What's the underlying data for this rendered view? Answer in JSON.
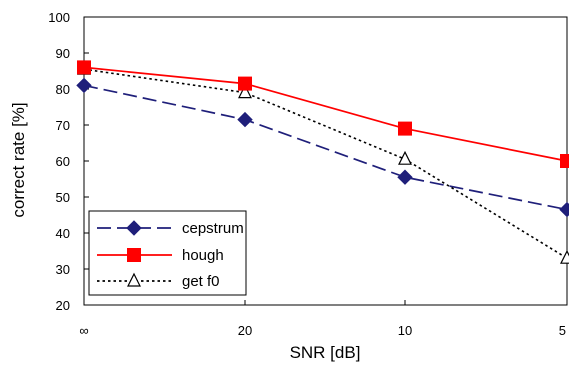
{
  "chart_data": {
    "type": "line",
    "categories": [
      "∞",
      "20",
      "10",
      "5"
    ],
    "xlabel": "SNR [dB]",
    "ylabel": "correct rate [%]",
    "ylim": [
      20,
      100
    ],
    "yticks": [
      20,
      30,
      40,
      50,
      60,
      70,
      80,
      90,
      100
    ],
    "grid": false,
    "legend_position": "bottom-left",
    "series": [
      {
        "name": "cepstrum",
        "values": [
          81,
          71.5,
          55.5,
          46.5
        ],
        "color": "#1f1f7a",
        "marker": "diamond",
        "line_style": "long-dash"
      },
      {
        "name": "hough",
        "values": [
          86,
          81.5,
          69,
          60
        ],
        "color": "#ff0000",
        "marker": "square",
        "line_style": "solid"
      },
      {
        "name": "get f0",
        "values": [
          85.5,
          79,
          60.5,
          33
        ],
        "color": "#000000",
        "marker": "open-triangle",
        "line_style": "dotted"
      }
    ]
  }
}
